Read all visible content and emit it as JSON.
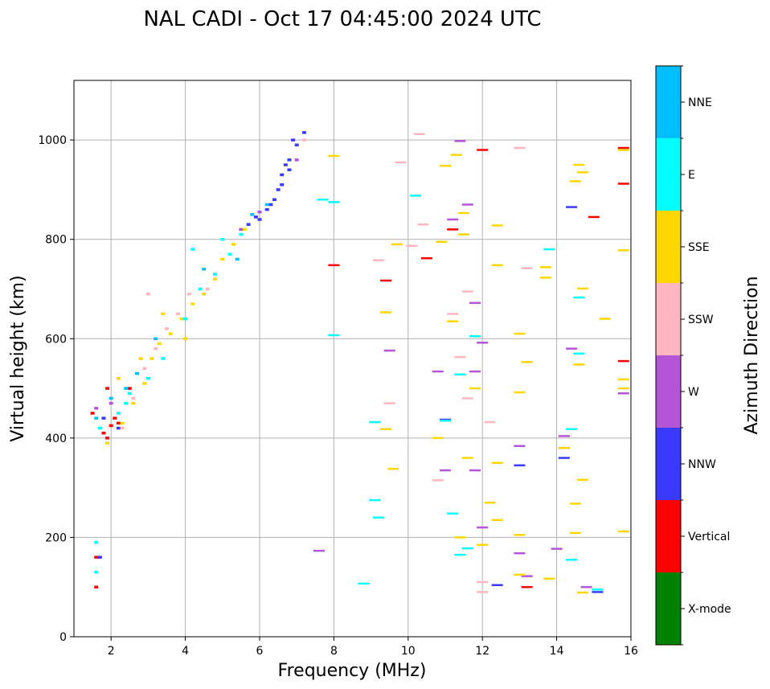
{
  "chart_data": {
    "type": "scatter",
    "title": "NAL CADI - Oct 17 04:45:00 2024 UTC",
    "xlabel": "Frequency (MHz)",
    "ylabel": "Virtual height (km)",
    "xlim": [
      1,
      16
    ],
    "ylim": [
      0,
      1120
    ],
    "x_ticks": [
      "2",
      "4",
      "6",
      "8",
      "10",
      "12",
      "14",
      "16"
    ],
    "y_ticks": [
      "0",
      "200",
      "400",
      "600",
      "800",
      "1000"
    ],
    "grid": true,
    "colorbar": {
      "label": "Azimuth Direction",
      "categories": [
        "X-mode",
        "Vertical",
        "NNW",
        "W",
        "SSW",
        "SSE",
        "E",
        "NNE"
      ],
      "colors": [
        "#008000",
        "#ff0000",
        "#3a3aff",
        "#b455d8",
        "#ffb6c1",
        "#ffd700",
        "#00ffff",
        "#00bfff"
      ]
    },
    "series": [
      {
        "name": "Vertical",
        "points": [
          [
            1.8,
            410
          ],
          [
            1.9,
            400
          ],
          [
            2.0,
            425
          ],
          [
            2.1,
            440
          ],
          [
            2.2,
            430
          ],
          [
            1.6,
            100
          ],
          [
            1.6,
            160
          ],
          [
            1.5,
            450
          ],
          [
            15.8,
            912
          ],
          [
            15.8,
            555
          ],
          [
            15.8,
            984
          ],
          [
            15.0,
            845
          ],
          [
            12.0,
            980
          ],
          [
            11.2,
            820
          ],
          [
            10.5,
            762
          ],
          [
            9.4,
            717
          ],
          [
            8.0,
            748
          ],
          [
            13.2,
            100
          ],
          [
            1.9,
            500
          ],
          [
            2.5,
            500
          ]
        ]
      },
      {
        "name": "NNW",
        "points": [
          [
            1.7,
            160
          ],
          [
            1.8,
            440
          ],
          [
            2.2,
            420
          ],
          [
            5.7,
            830
          ],
          [
            6.0,
            840
          ],
          [
            6.2,
            860
          ],
          [
            6.4,
            880
          ],
          [
            6.5,
            900
          ],
          [
            6.6,
            930
          ],
          [
            6.7,
            950
          ],
          [
            6.8,
            960
          ],
          [
            7.0,
            990
          ],
          [
            7.2,
            1015
          ],
          [
            6.9,
            1000
          ],
          [
            6.3,
            870
          ],
          [
            5.9,
            845
          ],
          [
            6.6,
            910
          ],
          [
            6.8,
            940
          ],
          [
            14.4,
            865
          ],
          [
            14.2,
            360
          ],
          [
            14.2,
            380
          ],
          [
            12.4,
            104
          ],
          [
            15.1,
            90
          ],
          [
            11.0,
            437
          ],
          [
            13.0,
            345
          ]
        ]
      },
      {
        "name": "W",
        "points": [
          [
            1.6,
            460
          ],
          [
            2.0,
            470
          ],
          [
            5.5,
            820
          ],
          [
            6.0,
            855
          ],
          [
            7.0,
            960
          ],
          [
            11.4,
            998
          ],
          [
            11.0,
            335
          ],
          [
            11.6,
            870
          ],
          [
            11.2,
            840
          ],
          [
            11.8,
            672
          ],
          [
            12.0,
            592
          ],
          [
            11.8,
            534
          ],
          [
            10.8,
            534
          ],
          [
            11.8,
            335
          ],
          [
            12.0,
            220
          ],
          [
            13.0,
            384
          ],
          [
            13.0,
            168
          ],
          [
            13.2,
            122
          ],
          [
            14.0,
            177
          ],
          [
            14.2,
            404
          ],
          [
            14.4,
            580
          ],
          [
            14.8,
            100
          ],
          [
            15.8,
            490
          ],
          [
            9.5,
            576
          ],
          [
            7.6,
            173
          ]
        ]
      },
      {
        "name": "SSW",
        "points": [
          [
            2.3,
            420
          ],
          [
            2.6,
            480
          ],
          [
            2.9,
            540
          ],
          [
            3.2,
            580
          ],
          [
            3.5,
            620
          ],
          [
            3.8,
            650
          ],
          [
            4.1,
            690
          ],
          [
            4.6,
            700
          ],
          [
            3.0,
            690
          ],
          [
            7.2,
            1000
          ],
          [
            10.3,
            1012
          ],
          [
            9.8,
            955
          ],
          [
            10.4,
            830
          ],
          [
            10.1,
            787
          ],
          [
            9.2,
            758
          ],
          [
            9.5,
            470
          ],
          [
            10.8,
            315
          ],
          [
            11.4,
            563
          ],
          [
            11.6,
            695
          ],
          [
            11.2,
            650
          ],
          [
            12.2,
            432
          ],
          [
            12.0,
            110
          ],
          [
            12.0,
            90
          ],
          [
            13.0,
            984
          ],
          [
            13.2,
            742
          ],
          [
            11.6,
            480
          ]
        ]
      },
      {
        "name": "SSE",
        "points": [
          [
            1.9,
            390
          ],
          [
            2.3,
            430
          ],
          [
            2.6,
            470
          ],
          [
            2.9,
            510
          ],
          [
            3.1,
            560
          ],
          [
            3.3,
            590
          ],
          [
            3.6,
            610
          ],
          [
            3.9,
            640
          ],
          [
            4.2,
            670
          ],
          [
            4.5,
            690
          ],
          [
            4.8,
            720
          ],
          [
            5.0,
            760
          ],
          [
            5.3,
            790
          ],
          [
            5.6,
            820
          ],
          [
            3.4,
            650
          ],
          [
            2.8,
            560
          ],
          [
            2.2,
            520
          ],
          [
            4.0,
            600
          ],
          [
            8.0,
            968
          ],
          [
            9.4,
            418
          ],
          [
            9.6,
            338
          ],
          [
            9.4,
            653
          ],
          [
            9.7,
            790
          ],
          [
            10.8,
            400
          ],
          [
            10.9,
            795
          ],
          [
            11.0,
            948
          ],
          [
            11.3,
            970
          ],
          [
            11.5,
            810
          ],
          [
            11.5,
            853
          ],
          [
            11.2,
            635
          ],
          [
            11.6,
            360
          ],
          [
            11.4,
            200
          ],
          [
            11.8,
            500
          ],
          [
            12.2,
            270
          ],
          [
            12.4,
            828
          ],
          [
            12.4,
            748
          ],
          [
            12.4,
            350
          ],
          [
            12.4,
            235
          ],
          [
            12.0,
            185
          ],
          [
            13.0,
            610
          ],
          [
            13.0,
            492
          ],
          [
            13.2,
            553
          ],
          [
            13.0,
            205
          ],
          [
            13.0,
            125
          ],
          [
            13.7,
            744
          ],
          [
            13.7,
            723
          ],
          [
            13.8,
            117
          ],
          [
            14.2,
            380
          ],
          [
            14.5,
            917
          ],
          [
            14.6,
            950
          ],
          [
            14.7,
            935
          ],
          [
            14.7,
            701
          ],
          [
            14.6,
            548
          ],
          [
            14.5,
            268
          ],
          [
            14.7,
            316
          ],
          [
            14.5,
            209
          ],
          [
            14.7,
            89
          ],
          [
            15.3,
            640
          ],
          [
            15.8,
            778
          ],
          [
            15.8,
            518
          ],
          [
            15.8,
            500
          ],
          [
            15.8,
            212
          ],
          [
            15.8,
            980
          ]
        ]
      },
      {
        "name": "E",
        "points": [
          [
            1.7,
            420
          ],
          [
            2.2,
            450
          ],
          [
            2.5,
            490
          ],
          [
            3.0,
            520
          ],
          [
            3.4,
            560
          ],
          [
            4.0,
            640
          ],
          [
            4.4,
            700
          ],
          [
            4.8,
            730
          ],
          [
            5.2,
            770
          ],
          [
            5.5,
            810
          ],
          [
            4.2,
            780
          ],
          [
            5.0,
            800
          ],
          [
            2.4,
            470
          ],
          [
            7.7,
            880
          ],
          [
            8.0,
            875
          ],
          [
            8.0,
            607
          ],
          [
            9.1,
            432
          ],
          [
            9.1,
            275
          ],
          [
            9.2,
            240
          ],
          [
            8.8,
            107
          ],
          [
            10.2,
            888
          ],
          [
            11.0,
            435
          ],
          [
            11.2,
            248
          ],
          [
            11.4,
            528
          ],
          [
            11.6,
            178
          ],
          [
            11.4,
            165
          ],
          [
            11.8,
            605
          ],
          [
            13.8,
            780
          ],
          [
            14.6,
            570
          ],
          [
            14.6,
            683
          ],
          [
            14.4,
            418
          ],
          [
            14.4,
            155
          ],
          [
            15.1,
            95
          ],
          [
            1.6,
            130
          ],
          [
            1.6,
            190
          ]
        ]
      },
      {
        "name": "NNE",
        "points": [
          [
            1.6,
            440
          ],
          [
            2.0,
            480
          ],
          [
            2.4,
            500
          ],
          [
            2.7,
            530
          ],
          [
            3.2,
            600
          ],
          [
            4.5,
            740
          ],
          [
            5.8,
            850
          ],
          [
            6.2,
            870
          ],
          [
            5.4,
            760
          ]
        ]
      }
    ]
  }
}
